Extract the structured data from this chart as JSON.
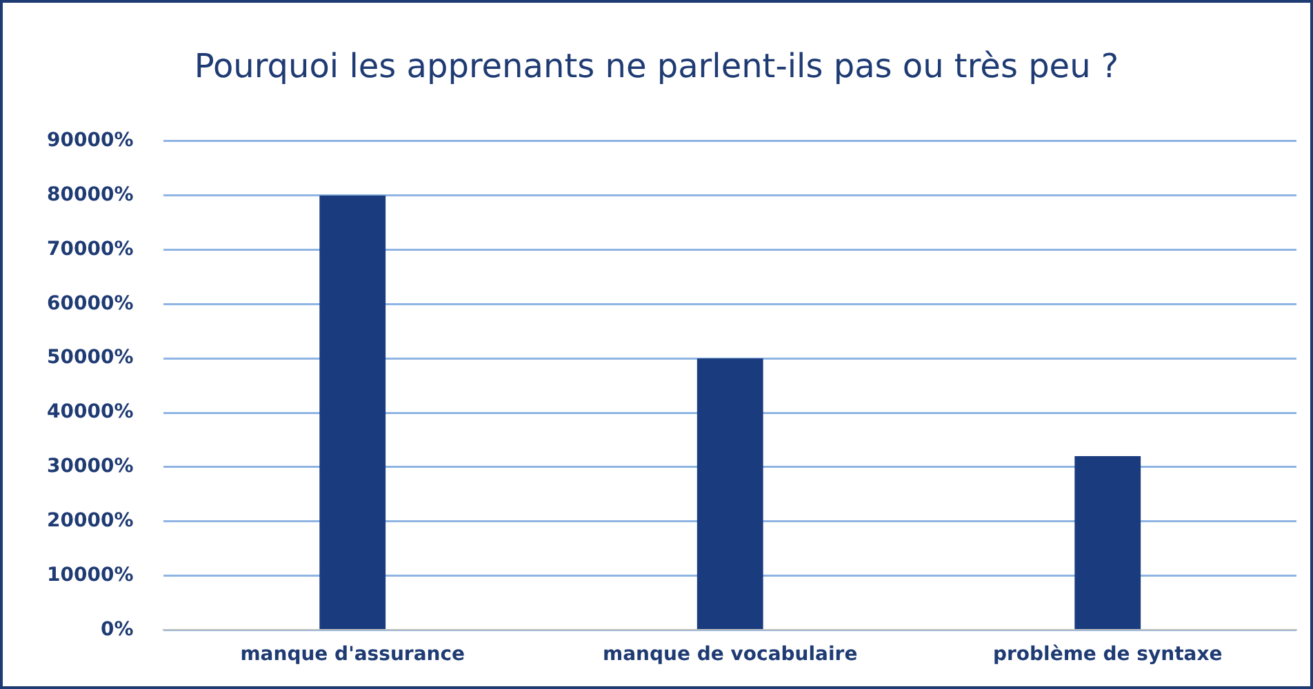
{
  "chart_data": {
    "type": "bar",
    "title": "Pourquoi les apprenants ne parlent-ils pas ou très peu ?",
    "categories": [
      "manque d'assurance",
      "manque de vocabulaire",
      "problème de syntaxe"
    ],
    "values": [
      80000,
      50000,
      32000
    ],
    "color": "#1a3c7e",
    "ylim": [
      0,
      90000
    ],
    "yticks": [
      {
        "value": 0,
        "label": "0%"
      },
      {
        "value": 10000,
        "label": "10000%"
      },
      {
        "value": 20000,
        "label": "20000%"
      },
      {
        "value": 30000,
        "label": "30000%"
      },
      {
        "value": 40000,
        "label": "40000%"
      },
      {
        "value": 50000,
        "label": "50000%"
      },
      {
        "value": 60000,
        "label": "60000%"
      },
      {
        "value": 70000,
        "label": "70000%"
      },
      {
        "value": 80000,
        "label": "80000%"
      },
      {
        "value": 90000,
        "label": "90000%"
      }
    ],
    "grid": "y",
    "legend": false
  }
}
